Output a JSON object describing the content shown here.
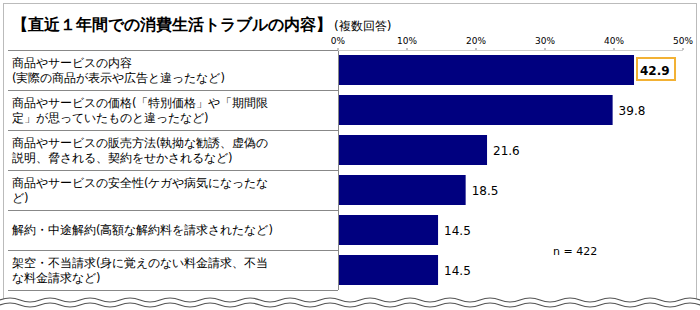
{
  "chart_data": {
    "type": "bar",
    "orientation": "horizontal",
    "title": "【直近１年間での消費生活トラブルの内容】",
    "subtitle": "(複数回答)",
    "categories": [
      "商品やサービスの内容\n(実際の商品が表示や広告と違ったなど)",
      "商品やサービスの価格(「特別価格」や「期間限\n定」が思っていたものと違ったなど)",
      "商品やサービスの販売方法(執拗な勧誘、虚偽の\n説明、脅される、契約をせかされるなど)",
      "商品やサービスの安全性(ケガや病気になったな\nど)",
      "解約・中途解約(高額な解約料を請求されたなど)",
      "架空・不当請求(身に覚えのない料金請求、不当\nな料金請求など)"
    ],
    "values": [
      42.9,
      39.8,
      21.6,
      18.5,
      14.5,
      14.5
    ],
    "color": "#00007f",
    "xlim": [
      0,
      50
    ],
    "xticks": [
      {
        "value": 0,
        "label": "0%"
      },
      {
        "value": 10,
        "label": "10%"
      },
      {
        "value": 20,
        "label": "20%"
      },
      {
        "value": 30,
        "label": "30%"
      },
      {
        "value": 40,
        "label": "40%"
      },
      {
        "value": 50,
        "label": "50%"
      }
    ],
    "grid": false,
    "data_labels": true,
    "annotation": "n = 422"
  }
}
